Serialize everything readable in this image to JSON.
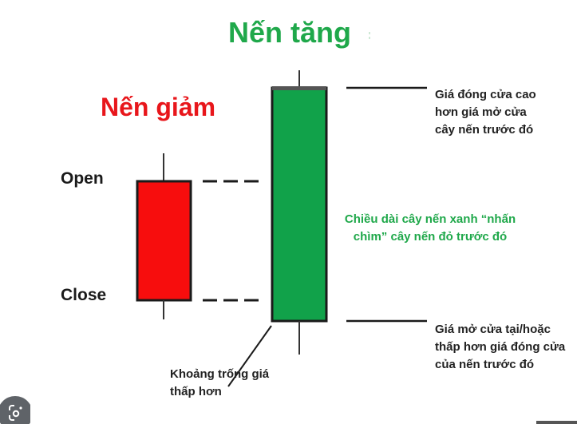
{
  "titles": {
    "bullish": "Nến tăng",
    "bearish": "Nến giảm"
  },
  "labels": {
    "open": "Open",
    "close": "Close"
  },
  "annotations": {
    "close_higher": "Giá đóng cửa cao\nhơn giá mở cửa\ncây nến trước đó",
    "engulf": "Chiều dài cây nến xanh “nhấn\nchìm” cây nến đỏ trước đó",
    "open_lower": "Giá mở cửa tại/hoặc\nthấp hơn giá đóng cửa\ncủa nến trước đó",
    "gap": "Khoảng trống giá\nthấp hơn"
  },
  "colors": {
    "bullish": "#1fa84a",
    "bearish": "#e8161b",
    "line": "#1a1a1a"
  },
  "icons": {
    "lens": "google-lens-icon"
  }
}
